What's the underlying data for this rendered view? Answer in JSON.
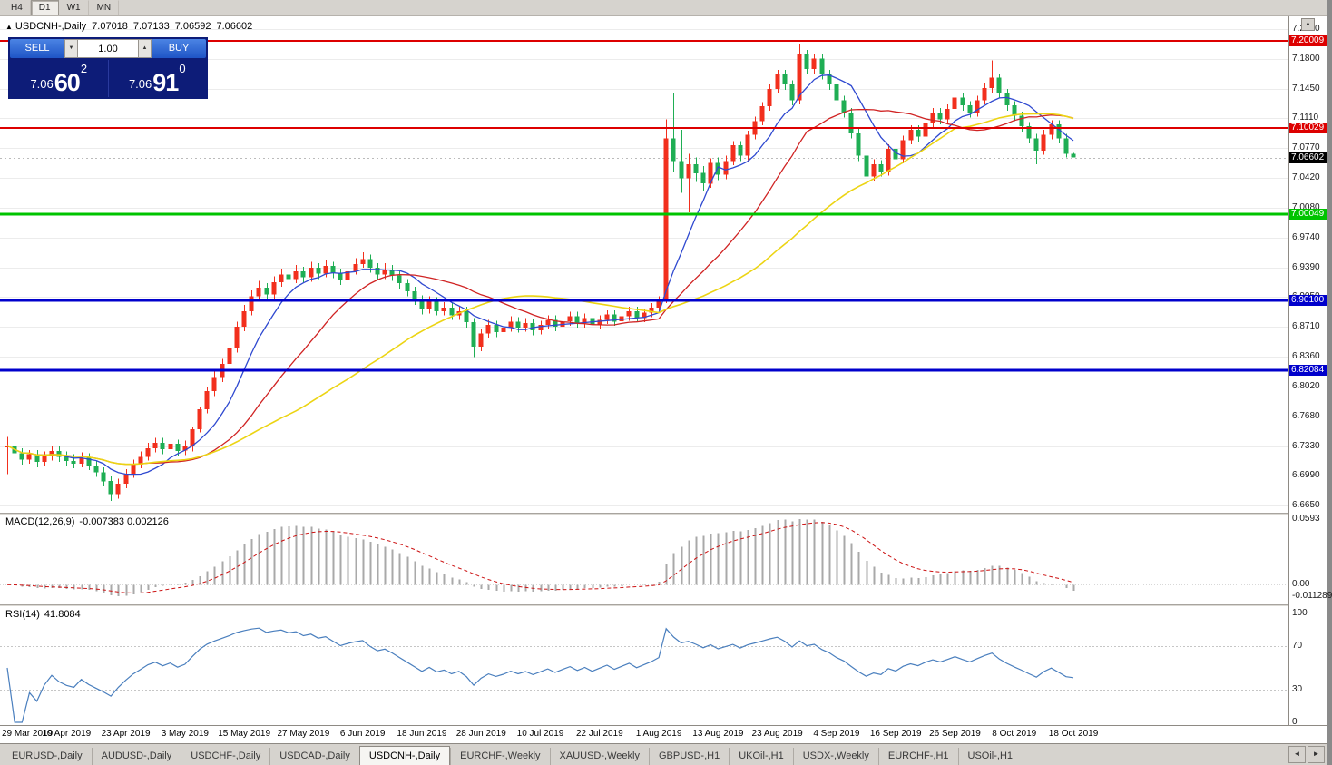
{
  "window": {
    "timeframes": [
      "H4",
      "D1",
      "W1",
      "MN"
    ],
    "active_timeframe": "D1"
  },
  "chart_header": {
    "symbol": "USDCNH-,Daily",
    "open": "7.07018",
    "high": "7.07133",
    "low": "7.06592",
    "close": "7.06602"
  },
  "trade_panel": {
    "sell_label": "SELL",
    "buy_label": "BUY",
    "lot": "1.00",
    "sell_price": {
      "prefix": "7.06",
      "big": "60",
      "sup": "2"
    },
    "buy_price": {
      "prefix": "7.06",
      "big": "91",
      "sup": "0"
    }
  },
  "icons": {
    "marker": "▲",
    "scroll_up": "▲",
    "spin_down": "▼",
    "spin_up": "▲",
    "tab_prev": "◄",
    "tab_next": "►"
  },
  "price_axis": {
    "ticks": [
      "7.2140",
      "7.1800",
      "7.1450",
      "7.1110",
      "7.0770",
      "7.0420",
      "7.0080",
      "6.9740",
      "6.9390",
      "6.9050",
      "6.8710",
      "6.8360",
      "6.8020",
      "6.7680",
      "6.7330",
      "6.6990",
      "6.6650"
    ],
    "current": {
      "label": "7.06602",
      "bg": "#000000"
    }
  },
  "chart_data": {
    "type": "candlestick",
    "title": "USDCNH-,Daily",
    "y_range": [
      6.665,
      7.214
    ],
    "bar_spacing": 8.16,
    "bars_per_x_tick": 8,
    "x_tick_labels": [
      "29 Mar 2019",
      "10 Apr 2019",
      "23 Apr 2019",
      "3 May 2019",
      "15 May 2019",
      "27 May 2019",
      "6 Jun 2019",
      "18 Jun 2019",
      "28 Jun 2019",
      "10 Jul 2019",
      "22 Jul 2019",
      "1 Aug 2019",
      "13 Aug 2019",
      "23 Aug 2019",
      "4 Sep 2019",
      "16 Sep 2019",
      "26 Sep 2019",
      "8 Oct 2019",
      "18 Oct 2019"
    ],
    "colors": {
      "up": "#f22f1d",
      "down": "#1fae54"
    },
    "current_price": 7.06602,
    "levels": [
      {
        "value": 7.20009,
        "label": "7.20009",
        "color": "#dd0000",
        "width": 2
      },
      {
        "value": 7.10029,
        "label": "7.10029",
        "color": "#dd0000",
        "width": 2
      },
      {
        "value": 7.00049,
        "label": "7.00049",
        "color": "#00c400",
        "width": 3
      },
      {
        "value": 6.901,
        "label": "6.90100",
        "color": "#0000cc",
        "width": 3
      },
      {
        "value": 6.82084,
        "label": "6.82084",
        "color": "#0000cc",
        "width": 3
      }
    ],
    "overlays": [
      {
        "name": "ma-fast",
        "period": 8,
        "color": "#2f49d0",
        "width": 1.3
      },
      {
        "name": "ma-mid",
        "period": 20,
        "color": "#d02323",
        "width": 1.3
      },
      {
        "name": "ma-slow",
        "period": 40,
        "color": "#ecd413",
        "width": 1.6
      }
    ],
    "indicators": [
      {
        "type": "MACD",
        "label": "MACD(12,26,9)",
        "value_text": "-0.007383 0.002126",
        "values": [
          -0.007383,
          0.002126
        ],
        "axis_labels": [
          "0.0593",
          "0.00",
          "-0.011289"
        ]
      },
      {
        "type": "RSI",
        "label": "RSI(14)",
        "value_text": "41.8084",
        "value": 41.8084,
        "axis_labels": [
          "100",
          "70",
          "30",
          "0"
        ],
        "levels": [
          70,
          30
        ]
      }
    ],
    "ohlc": [
      [
        6.732,
        6.744,
        6.701,
        6.734
      ],
      [
        6.734,
        6.74,
        6.718,
        6.725
      ],
      [
        6.725,
        6.731,
        6.712,
        6.718
      ],
      [
        6.718,
        6.729,
        6.713,
        6.724
      ],
      [
        6.724,
        6.729,
        6.709,
        6.715
      ],
      [
        6.715,
        6.727,
        6.71,
        6.722
      ],
      [
        6.722,
        6.733,
        6.717,
        6.728
      ],
      [
        6.728,
        6.733,
        6.715,
        6.721
      ],
      [
        6.721,
        6.727,
        6.711,
        6.716
      ],
      [
        6.716,
        6.724,
        6.708,
        6.713
      ],
      [
        6.713,
        6.726,
        6.709,
        6.72
      ],
      [
        6.72,
        6.725,
        6.706,
        6.711
      ],
      [
        6.711,
        6.717,
        6.698,
        6.703
      ],
      [
        6.703,
        6.709,
        6.687,
        6.693
      ],
      [
        6.693,
        6.699,
        6.67,
        6.678
      ],
      [
        6.678,
        6.696,
        6.673,
        6.69
      ],
      [
        6.69,
        6.707,
        6.685,
        6.701
      ],
      [
        6.701,
        6.718,
        6.697,
        6.712
      ],
      [
        6.712,
        6.727,
        6.708,
        6.721
      ],
      [
        6.721,
        6.737,
        6.717,
        6.731
      ],
      [
        6.731,
        6.743,
        6.726,
        6.737
      ],
      [
        6.737,
        6.743,
        6.724,
        6.73
      ],
      [
        6.73,
        6.742,
        6.725,
        6.736
      ],
      [
        6.736,
        6.741,
        6.722,
        6.728
      ],
      [
        6.728,
        6.74,
        6.723,
        6.734
      ],
      [
        6.734,
        6.756,
        6.727,
        6.753
      ],
      [
        6.753,
        6.779,
        6.749,
        6.776
      ],
      [
        6.776,
        6.802,
        6.771,
        6.797
      ],
      [
        6.797,
        6.819,
        6.791,
        6.813
      ],
      [
        6.813,
        6.834,
        6.807,
        6.828
      ],
      [
        6.828,
        6.852,
        6.822,
        6.846
      ],
      [
        6.846,
        6.877,
        6.841,
        6.871
      ],
      [
        6.871,
        6.896,
        6.866,
        6.889
      ],
      [
        6.889,
        6.913,
        6.884,
        6.906
      ],
      [
        6.906,
        6.924,
        6.9,
        6.916
      ],
      [
        6.916,
        6.921,
        6.901,
        6.908
      ],
      [
        6.908,
        6.929,
        6.903,
        6.922
      ],
      [
        6.922,
        6.938,
        6.917,
        6.931
      ],
      [
        6.931,
        6.936,
        6.919,
        6.926
      ],
      [
        6.926,
        6.942,
        6.921,
        6.935
      ],
      [
        6.935,
        6.94,
        6.922,
        6.928
      ],
      [
        6.928,
        6.946,
        6.923,
        6.939
      ],
      [
        6.939,
        6.944,
        6.926,
        6.932
      ],
      [
        6.932,
        6.948,
        6.928,
        6.941
      ],
      [
        6.941,
        6.946,
        6.927,
        6.933
      ],
      [
        6.933,
        6.938,
        6.919,
        6.925
      ],
      [
        6.925,
        6.942,
        6.92,
        6.935
      ],
      [
        6.935,
        6.95,
        6.931,
        6.943
      ],
      [
        6.943,
        6.957,
        6.939,
        6.949
      ],
      [
        6.949,
        6.954,
        6.933,
        6.939
      ],
      [
        6.939,
        6.944,
        6.925,
        6.931
      ],
      [
        6.931,
        6.944,
        6.926,
        6.937
      ],
      [
        6.937,
        6.942,
        6.924,
        6.93
      ],
      [
        6.93,
        6.935,
        6.915,
        6.921
      ],
      [
        6.921,
        6.926,
        6.906,
        6.912
      ],
      [
        6.912,
        6.917,
        6.896,
        6.902
      ],
      [
        6.902,
        6.907,
        6.885,
        6.891
      ],
      [
        6.891,
        6.906,
        6.886,
        6.9
      ],
      [
        6.9,
        6.905,
        6.884,
        6.889
      ],
      [
        6.889,
        6.899,
        6.884,
        6.893
      ],
      [
        6.893,
        6.898,
        6.879,
        6.884
      ],
      [
        6.884,
        6.894,
        6.879,
        6.889
      ],
      [
        6.889,
        6.894,
        6.87,
        6.876
      ],
      [
        6.876,
        6.881,
        6.836,
        6.848
      ],
      [
        6.848,
        6.869,
        6.843,
        6.863
      ],
      [
        6.863,
        6.879,
        6.858,
        6.873
      ],
      [
        6.873,
        6.878,
        6.859,
        6.865
      ],
      [
        6.865,
        6.876,
        6.86,
        6.87
      ],
      [
        6.87,
        6.883,
        6.865,
        6.877
      ],
      [
        6.877,
        6.882,
        6.864,
        6.87
      ],
      [
        6.87,
        6.881,
        6.865,
        6.875
      ],
      [
        6.875,
        6.88,
        6.861,
        6.867
      ],
      [
        6.867,
        6.878,
        6.862,
        6.873
      ],
      [
        6.873,
        6.884,
        6.868,
        6.879
      ],
      [
        6.879,
        6.884,
        6.866,
        6.871
      ],
      [
        6.871,
        6.882,
        6.866,
        6.877
      ],
      [
        6.877,
        6.888,
        6.872,
        6.883
      ],
      [
        6.883,
        6.888,
        6.87,
        6.875
      ],
      [
        6.875,
        6.886,
        6.87,
        6.881
      ],
      [
        6.881,
        6.886,
        6.868,
        6.873
      ],
      [
        6.873,
        6.884,
        6.868,
        6.879
      ],
      [
        6.879,
        6.89,
        6.874,
        6.885
      ],
      [
        6.885,
        6.89,
        6.872,
        6.877
      ],
      [
        6.877,
        6.888,
        6.872,
        6.883
      ],
      [
        6.883,
        6.894,
        6.878,
        6.889
      ],
      [
        6.889,
        6.894,
        6.876,
        6.881
      ],
      [
        6.881,
        6.892,
        6.876,
        6.887
      ],
      [
        6.887,
        6.898,
        6.882,
        6.893
      ],
      [
        6.893,
        6.906,
        6.888,
        6.902
      ],
      [
        6.902,
        7.11,
        6.898,
        7.088
      ],
      [
        7.088,
        7.14,
        7.05,
        7.062
      ],
      [
        7.062,
        7.098,
        7.025,
        7.042
      ],
      [
        7.042,
        7.07,
        7.003,
        7.058
      ],
      [
        7.058,
        7.066,
        7.038,
        7.048
      ],
      [
        7.048,
        7.056,
        7.028,
        7.036
      ],
      [
        7.036,
        7.065,
        7.031,
        7.06
      ],
      [
        7.06,
        7.066,
        7.04,
        7.046
      ],
      [
        7.046,
        7.068,
        7.041,
        7.062
      ],
      [
        7.062,
        7.085,
        7.057,
        7.08
      ],
      [
        7.08,
        7.085,
        7.062,
        7.068
      ],
      [
        7.068,
        7.097,
        7.063,
        7.092
      ],
      [
        7.092,
        7.113,
        7.087,
        7.108
      ],
      [
        7.108,
        7.13,
        7.103,
        7.125
      ],
      [
        7.125,
        7.15,
        7.12,
        7.145
      ],
      [
        7.145,
        7.167,
        7.14,
        7.162
      ],
      [
        7.162,
        7.167,
        7.144,
        7.15
      ],
      [
        7.15,
        7.155,
        7.126,
        7.132
      ],
      [
        7.132,
        7.196,
        7.127,
        7.185
      ],
      [
        7.185,
        7.19,
        7.162,
        7.168
      ],
      [
        7.168,
        7.185,
        7.163,
        7.18
      ],
      [
        7.18,
        7.185,
        7.156,
        7.162
      ],
      [
        7.162,
        7.167,
        7.144,
        7.15
      ],
      [
        7.15,
        7.155,
        7.126,
        7.132
      ],
      [
        7.132,
        7.137,
        7.112,
        7.118
      ],
      [
        7.118,
        7.123,
        7.088,
        7.094
      ],
      [
        7.094,
        7.099,
        7.062,
        7.068
      ],
      [
        7.068,
        7.073,
        7.02,
        7.044
      ],
      [
        7.044,
        7.064,
        7.039,
        7.058
      ],
      [
        7.058,
        7.063,
        7.044,
        7.05
      ],
      [
        7.05,
        7.081,
        7.045,
        7.076
      ],
      [
        7.076,
        7.081,
        7.058,
        7.064
      ],
      [
        7.064,
        7.091,
        7.059,
        7.086
      ],
      [
        7.086,
        7.103,
        7.081,
        7.098
      ],
      [
        7.098,
        7.103,
        7.084,
        7.09
      ],
      [
        7.09,
        7.111,
        7.085,
        7.106
      ],
      [
        7.106,
        7.123,
        7.101,
        7.118
      ],
      [
        7.118,
        7.123,
        7.104,
        7.11
      ],
      [
        7.11,
        7.127,
        7.105,
        7.122
      ],
      [
        7.122,
        7.14,
        7.117,
        7.135
      ],
      [
        7.135,
        7.14,
        7.12,
        7.126
      ],
      [
        7.126,
        7.131,
        7.112,
        7.118
      ],
      [
        7.118,
        7.137,
        7.113,
        7.132
      ],
      [
        7.132,
        7.151,
        7.127,
        7.146
      ],
      [
        7.146,
        7.178,
        7.141,
        7.158
      ],
      [
        7.158,
        7.163,
        7.134,
        7.14
      ],
      [
        7.14,
        7.145,
        7.12,
        7.126
      ],
      [
        7.126,
        7.131,
        7.108,
        7.114
      ],
      [
        7.114,
        7.119,
        7.096,
        7.102
      ],
      [
        7.102,
        7.107,
        7.082,
        7.088
      ],
      [
        7.088,
        7.093,
        7.058,
        7.074
      ],
      [
        7.074,
        7.098,
        7.069,
        7.092
      ],
      [
        7.092,
        7.109,
        7.087,
        7.104
      ],
      [
        7.104,
        7.109,
        7.082,
        7.088
      ],
      [
        7.088,
        7.093,
        7.066,
        7.0702
      ],
      [
        7.0702,
        7.0713,
        7.0659,
        7.066
      ]
    ]
  },
  "tab_bar": {
    "tabs": [
      {
        "label": "EURUSD-,Daily"
      },
      {
        "label": "AUDUSD-,Daily"
      },
      {
        "label": "USDCHF-,Daily"
      },
      {
        "label": "USDCAD-,Daily"
      },
      {
        "label": "USDCNH-,Daily",
        "active": true
      },
      {
        "label": "EURCHF-,Weekly"
      },
      {
        "label": "XAUUSD-,Weekly"
      },
      {
        "label": "GBPUSD-,H1"
      },
      {
        "label": "UKOil-,H1"
      },
      {
        "label": "USDX-,Weekly"
      },
      {
        "label": "EURCHF-,H1"
      },
      {
        "label": "USOil-,H1"
      }
    ]
  }
}
